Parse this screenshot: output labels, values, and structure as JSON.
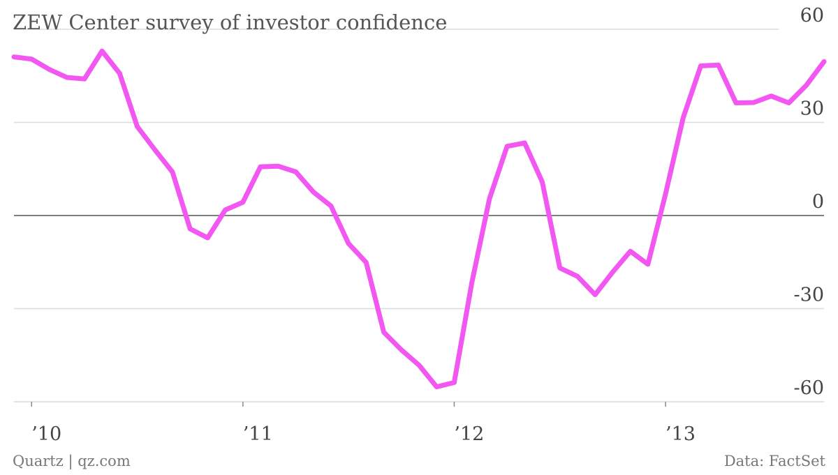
{
  "footer": {
    "source_left": "Quartz | qz.com",
    "source_right": "Data: FactSet"
  },
  "chart_data": {
    "type": "line",
    "title": "ZEW Center survey of investor confidence",
    "xlabel": "",
    "ylabel": "",
    "ylim": [
      -60,
      60
    ],
    "yticks": [
      60,
      30,
      0,
      -30,
      -60
    ],
    "xticks": [
      {
        "date": "2010-01",
        "label": "’10"
      },
      {
        "date": "2011-01",
        "label": "’11"
      },
      {
        "date": "2012-01",
        "label": "’12"
      },
      {
        "date": "2013-01",
        "label": "’13"
      }
    ],
    "x_range": [
      "2009-12",
      "2013-10"
    ],
    "grid": true,
    "line_color": "#f257f2",
    "series": [
      {
        "name": "",
        "x": [
          "2009-12",
          "2010-01",
          "2010-02",
          "2010-03",
          "2010-04",
          "2010-05",
          "2010-06",
          "2010-07",
          "2010-08",
          "2010-09",
          "2010-10",
          "2010-11",
          "2010-12",
          "2011-01",
          "2011-02",
          "2011-03",
          "2011-04",
          "2011-05",
          "2011-06",
          "2011-07",
          "2011-08",
          "2011-09",
          "2011-10",
          "2011-11",
          "2011-12",
          "2012-01",
          "2012-02",
          "2012-03",
          "2012-04",
          "2012-05",
          "2012-06",
          "2012-07",
          "2012-08",
          "2012-09",
          "2012-10",
          "2012-11",
          "2012-12",
          "2013-01",
          "2013-02",
          "2013-03",
          "2013-04",
          "2013-05",
          "2013-06",
          "2013-07",
          "2013-08",
          "2013-09",
          "2013-10"
        ],
        "values": [
          51.1,
          50.4,
          47.1,
          44.5,
          44.0,
          53.0,
          45.8,
          28.7,
          21.2,
          14.0,
          -4.3,
          -7.2,
          1.8,
          4.3,
          15.7,
          15.9,
          14.1,
          7.6,
          3.1,
          -9.0,
          -15.1,
          -37.6,
          -43.3,
          -48.2,
          -55.2,
          -53.8,
          -21.6,
          5.4,
          22.3,
          23.4,
          10.8,
          -16.9,
          -19.6,
          -25.5,
          -18.2,
          -11.5,
          -15.7,
          6.9,
          31.5,
          48.2,
          48.5,
          36.3,
          36.4,
          38.5,
          36.3,
          42.0,
          49.6
        ]
      }
    ]
  }
}
